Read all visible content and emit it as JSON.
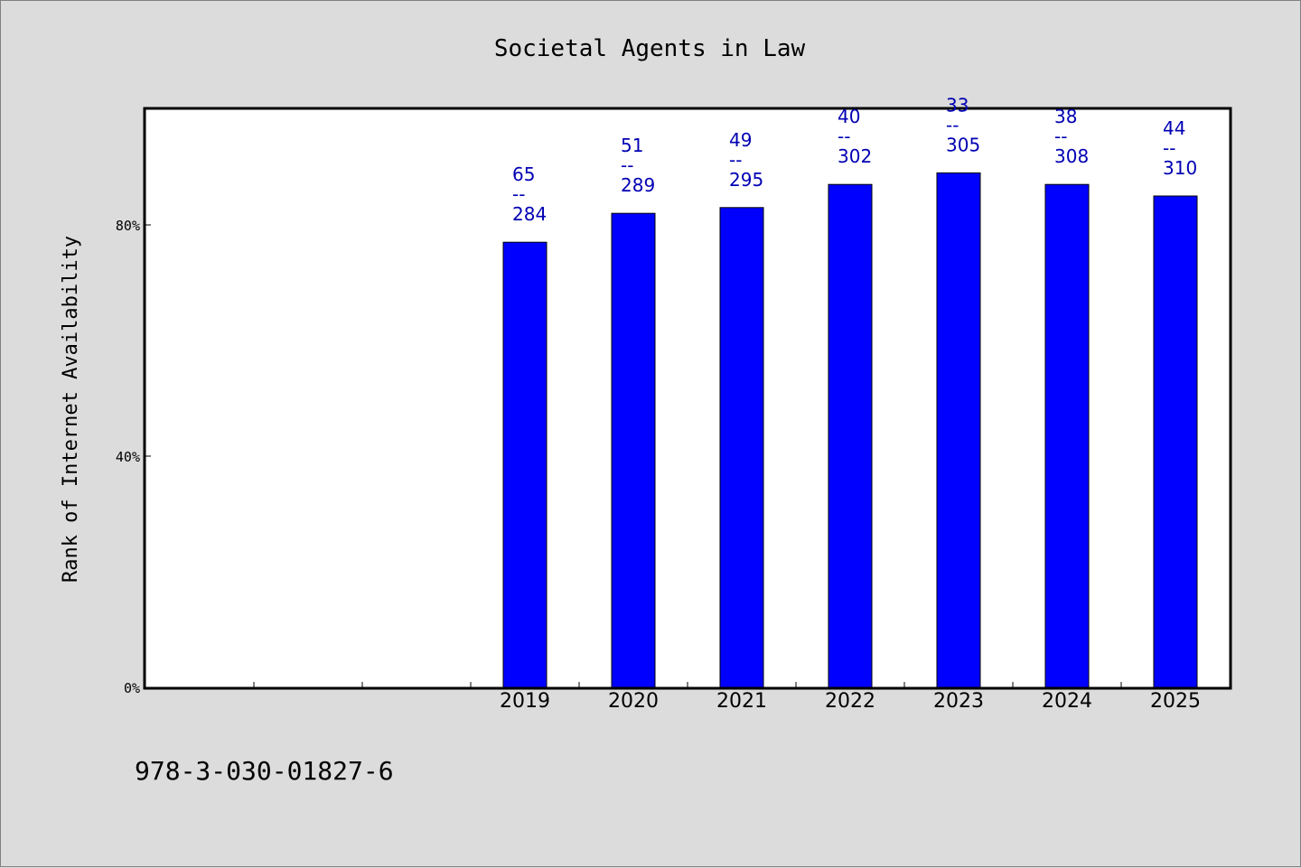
{
  "chart_data": {
    "type": "bar",
    "title": "Societal Agents in Law",
    "ylabel": "Rank of Internet Availability",
    "xlabel": "",
    "categories": [
      "",
      "",
      "",
      "2019",
      "2020",
      "2021",
      "2022",
      "2023",
      "2024",
      "2025"
    ],
    "values": [
      null,
      null,
      null,
      77,
      82,
      83,
      87,
      89,
      87,
      85
    ],
    "data_labels": [
      null,
      null,
      null,
      {
        "rank": "65",
        "total": "284"
      },
      {
        "rank": "51",
        "total": "289"
      },
      {
        "rank": "49",
        "total": "295"
      },
      {
        "rank": "40",
        "total": "302"
      },
      {
        "rank": "33",
        "total": "305"
      },
      {
        "rank": "38",
        "total": "308"
      },
      {
        "rank": "44",
        "total": "310"
      }
    ],
    "label_separator": "--",
    "yticks": [
      {
        "value": 0,
        "label": "0%"
      },
      {
        "value": 40,
        "label": "40%"
      },
      {
        "value": 80,
        "label": "80%"
      }
    ],
    "ylim": [
      0,
      100
    ],
    "grid": false,
    "bar_color": "#0000ff",
    "label_color": "#0000b4",
    "background": "#dcdcdc",
    "plot_background": "#ffffff"
  },
  "footer_text": "978-3-030-01827-6"
}
